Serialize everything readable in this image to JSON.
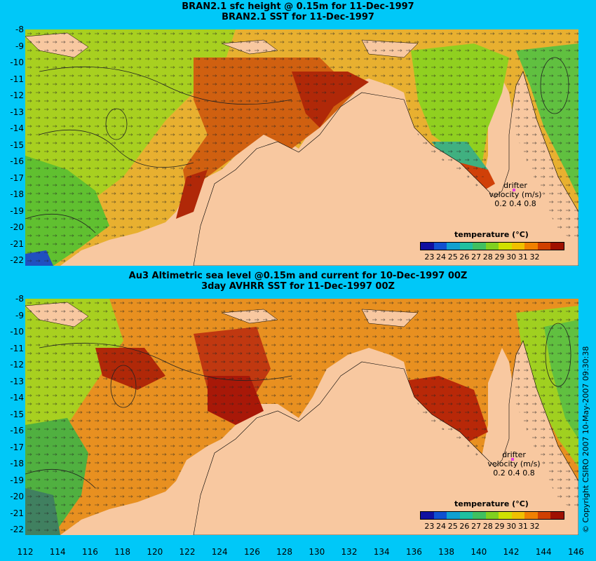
{
  "top_panel": {
    "title_line1": "BRAN2.1 sfc height @ 0.15m for 11-Dec-1997",
    "title_line2": "BRAN2.1 SST for 11-Dec-1997",
    "legend_title": "temperature (°C)",
    "drifter_label": "drifter",
    "velocity_label": "velocity (m/s)",
    "velocity_scale": "0.2  0.4  0.8"
  },
  "bottom_panel": {
    "title_line1": "Au3 Altimetric sea level  @0.15m and current for 10-Dec-1997 00Z",
    "title_line2": "3day AVHRR SST for 11-Dec-1997 00Z",
    "legend_title": "temperature (°C)",
    "drifter_label": "drifter",
    "velocity_label": "velocity (m/s)",
    "velocity_scale": "0.2  0.4  0.8"
  },
  "colorbar_ticks": [
    "23",
    "24",
    "25",
    "26",
    "27",
    "28",
    "29",
    "30",
    "31",
    "32"
  ],
  "colorbar_colors": [
    "#1010a0",
    "#1050d0",
    "#10a0d0",
    "#20c0a0",
    "#40c060",
    "#80d020",
    "#d0e000",
    "#f0c000",
    "#f08000",
    "#d04000",
    "#a01000"
  ],
  "lat_ticks": [
    "-8",
    "-9",
    "-10",
    "-11",
    "-12",
    "-13",
    "-14",
    "-15",
    "-16",
    "-17",
    "-18",
    "-19",
    "-20",
    "-21",
    "-22"
  ],
  "lon_ticks": [
    "112",
    "114",
    "116",
    "118",
    "120",
    "122",
    "124",
    "126",
    "128",
    "130",
    "132",
    "134",
    "136",
    "138",
    "140",
    "142",
    "144",
    "146"
  ],
  "copyright": "© Copyright CSIRO 2007  10-May-2007 09:30:38",
  "colors": {
    "background": "#00c8f8",
    "land": "#f8c8a0",
    "drifter_marker": "#e040e0"
  }
}
